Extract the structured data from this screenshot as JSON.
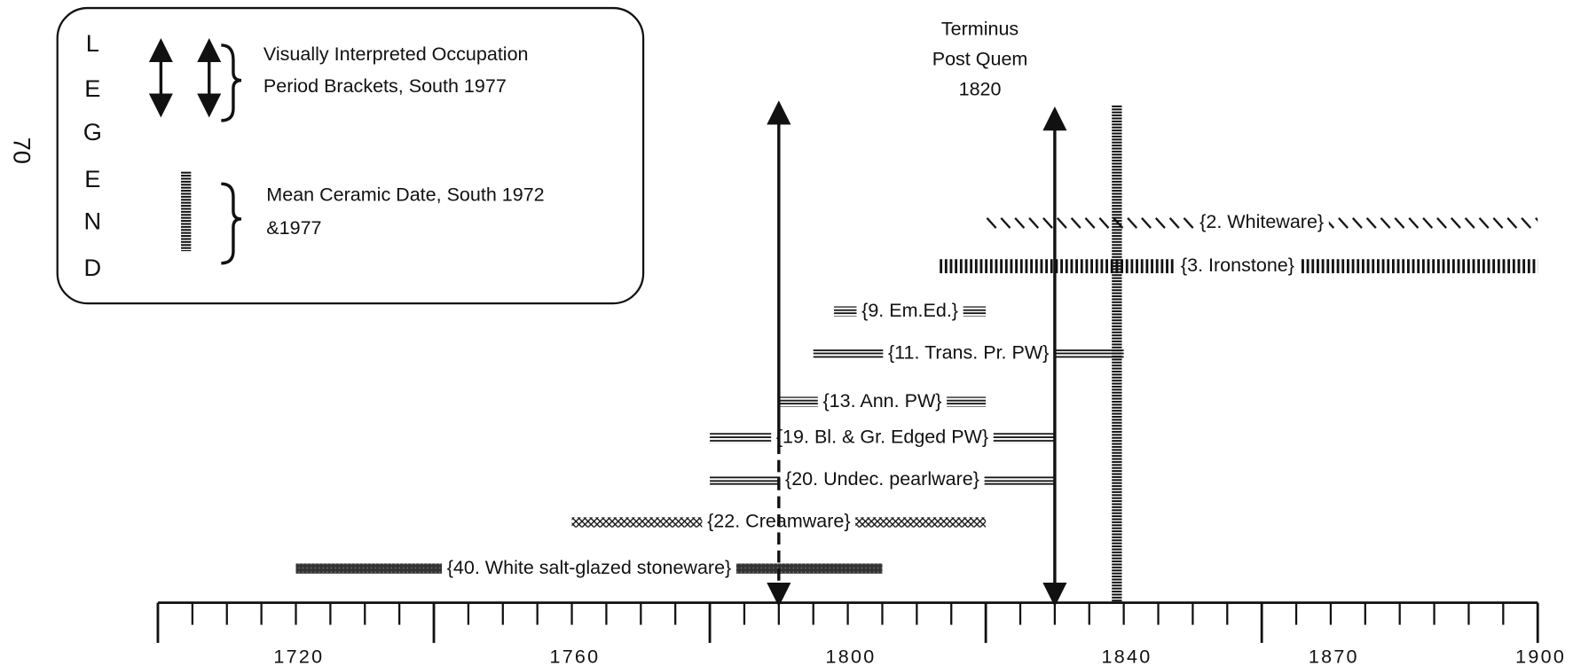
{
  "chart_data": {
    "type": "range",
    "page_number": "70",
    "legend": {
      "letters": [
        "L",
        "E",
        "G",
        "E",
        "N",
        "D"
      ],
      "bracket_text": [
        "Visually Interpreted Occupation",
        "Period Brackets, South 1977"
      ],
      "mean_text": [
        "Mean Ceramic Date, South 1972",
        "&1977"
      ]
    },
    "annotation": [
      "Terminus",
      "Post Quem",
      "1820"
    ],
    "categories": [
      "{2. Whiteware}",
      "{3. Ironstone}",
      "{9. Em.Ed.}",
      "{11. Trans. Pr. PW}",
      "{13. Ann. PW}",
      "{19. Bl. & Gr. Edged PW}",
      "{20. Undec. pearlware}",
      "{22. Creamware}",
      "{40. White salt-glazed stoneware}"
    ],
    "patterns": [
      "hatch",
      "vlines",
      "hlines",
      "hlines",
      "hlines",
      "hlines",
      "hlines",
      "cross",
      "dark"
    ],
    "starts": [
      1820,
      1813,
      1798,
      1795,
      1790,
      1780,
      1780,
      1760,
      1720
    ],
    "ends": [
      1900,
      1900,
      1820,
      1840,
      1820,
      1830,
      1830,
      1820,
      1805
    ],
    "occupation_brackets": [
      1790,
      1830
    ],
    "mean_ceramic_date": 1839,
    "xlim": [
      1700,
      1900
    ],
    "xticks": [
      1720,
      1760,
      1800,
      1840,
      1870,
      1900
    ],
    "major_xticks": [
      1700,
      1740,
      1780,
      1820,
      1860,
      1900
    ],
    "minor_xticks": [
      1705,
      1710,
      1715,
      1720,
      1725,
      1730,
      1735,
      1745,
      1750,
      1755,
      1760,
      1765,
      1770,
      1775,
      1785,
      1790,
      1795,
      1800,
      1805,
      1810,
      1815,
      1825,
      1830,
      1835,
      1840,
      1845,
      1850,
      1855,
      1865,
      1870,
      1875,
      1880,
      1885,
      1890,
      1895
    ]
  }
}
